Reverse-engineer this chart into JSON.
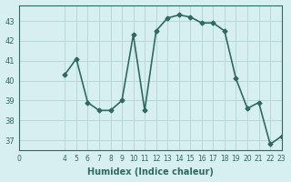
{
  "x": [
    4,
    5,
    6,
    7,
    8,
    9,
    10,
    11,
    12,
    13,
    14,
    15,
    16,
    17,
    18,
    19,
    20,
    21,
    22,
    23
  ],
  "y": [
    40.3,
    41.1,
    38.9,
    38.5,
    38.5,
    39.0,
    42.3,
    38.5,
    42.5,
    43.15,
    43.3,
    43.2,
    42.9,
    42.9,
    42.5,
    40.1,
    38.6,
    38.9,
    36.8,
    37.2
  ],
  "xlabel": "Humidex (Indice chaleur)",
  "ylabel": "",
  "xlim": [
    0,
    23
  ],
  "ylim": [
    36.5,
    43.8
  ],
  "yticks": [
    37,
    38,
    39,
    40,
    41,
    42,
    43
  ],
  "xticks": [
    0,
    4,
    5,
    6,
    7,
    8,
    9,
    10,
    11,
    12,
    13,
    14,
    15,
    16,
    17,
    18,
    19,
    20,
    21,
    22,
    23
  ],
  "line_color": "#2e6b5e",
  "bg_color": "#d7eff0",
  "grid_color": "#b8d8d8",
  "marker": "D",
  "markersize": 2.5,
  "linewidth": 1.2
}
